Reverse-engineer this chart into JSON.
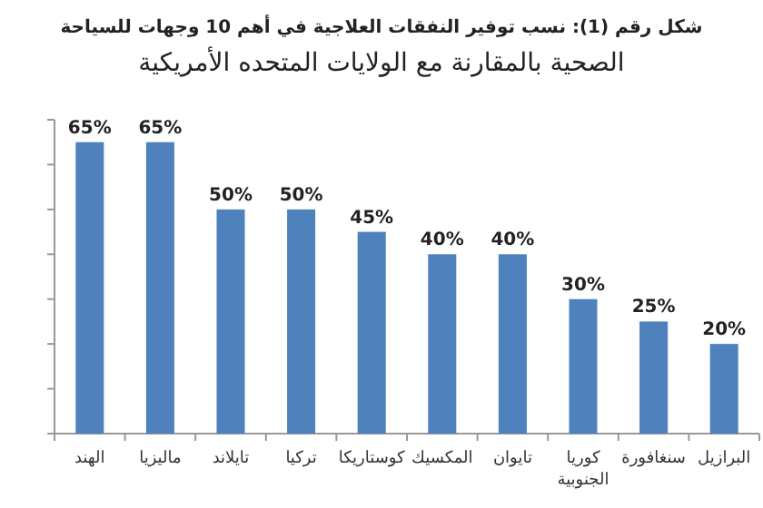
{
  "chart_data": {
    "type": "bar",
    "title": "شكل رقم (1): نسب توفير النفقات العلاجية في أهم 10 وجهات للسياحة",
    "subtitle": "الصحية بالمقارنة مع الولايات المتحده الأمريكية",
    "categories": [
      "الهند",
      "ماليزيا",
      "تايلاند",
      "تركيا",
      "كوستاريكا",
      "المكسيك",
      "تايوان",
      "كوريا الجنوبية",
      "سنغافورة",
      "البرازيل"
    ],
    "values": [
      65,
      65,
      50,
      50,
      45,
      40,
      40,
      30,
      25,
      20
    ],
    "value_labels": [
      "65%",
      "65%",
      "50%",
      "50%",
      "45%",
      "40%",
      "40%",
      "30%",
      "25%",
      "20%"
    ],
    "color": "#4f81bd",
    "ylim": [
      0,
      70
    ],
    "yticks": [
      {
        "value": 0,
        "label": null
      },
      {
        "value": 10,
        "label": null
      },
      {
        "value": 20,
        "label": null
      },
      {
        "value": 30,
        "label": null
      },
      {
        "value": 40,
        "label": null
      },
      {
        "value": 50,
        "label": null
      },
      {
        "value": 60,
        "label": null
      },
      {
        "value": 70,
        "label": null
      }
    ],
    "tick_labels": "x"
  }
}
